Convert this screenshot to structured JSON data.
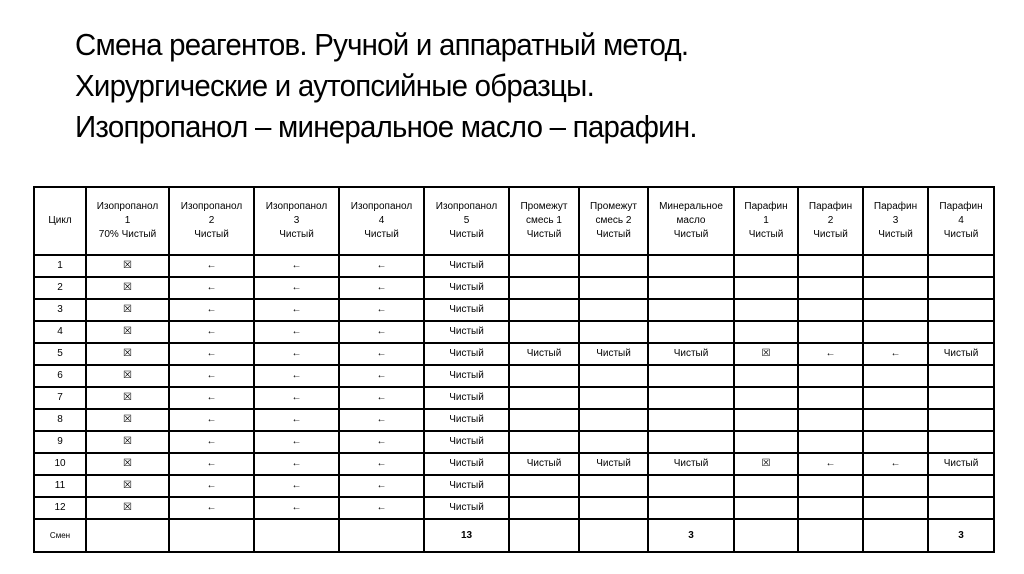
{
  "title": {
    "lines": [
      "Смена реагентов. Ручной и аппаратный метод.",
      "Хирургические и аутопсийные образцы.",
      "Изопропанол – минеральное масло – парафин."
    ]
  },
  "icons": {
    "box": "☒",
    "arrow": "←"
  },
  "table": {
    "headers": [
      [
        "Цикл"
      ],
      [
        "Изопропанол",
        "1",
        "70% Чистый"
      ],
      [
        "Изопропанол",
        "2",
        "Чистый"
      ],
      [
        "Изопропанол",
        "3",
        "Чистый"
      ],
      [
        "Изопропанол",
        "4",
        "Чистый"
      ],
      [
        "Изопропанол",
        "5",
        "Чистый"
      ],
      [
        "Промежут",
        "смесь 1",
        "Чистый"
      ],
      [
        "Промежут",
        "смесь 2",
        "Чистый"
      ],
      [
        "Минеральное",
        "масло",
        "Чистый"
      ],
      [
        "Парафин",
        "1",
        "Чистый"
      ],
      [
        "Парафин",
        "2",
        "Чистый"
      ],
      [
        "Парафин",
        "3",
        "Чистый"
      ],
      [
        "Парафин",
        "4",
        "Чистый"
      ]
    ],
    "rows": [
      [
        "1",
        "☒",
        "←",
        "←",
        "←",
        "Чистый",
        "",
        "",
        "",
        "",
        "",
        "",
        ""
      ],
      [
        "2",
        "☒",
        "←",
        "←",
        "←",
        "Чистый",
        "",
        "",
        "",
        "",
        "",
        "",
        ""
      ],
      [
        "3",
        "☒",
        "←",
        "←",
        "←",
        "Чистый",
        "",
        "",
        "",
        "",
        "",
        "",
        ""
      ],
      [
        "4",
        "☒",
        "←",
        "←",
        "←",
        "Чистый",
        "",
        "",
        "",
        "",
        "",
        "",
        ""
      ],
      [
        "5",
        "☒",
        "←",
        "←",
        "←",
        "Чистый",
        "Чистый",
        "Чистый",
        "Чистый",
        "☒",
        "←",
        "←",
        "Чистый"
      ],
      [
        "6",
        "☒",
        "←",
        "←",
        "←",
        "Чистый",
        "",
        "",
        "",
        "",
        "",
        "",
        ""
      ],
      [
        "7",
        "☒",
        "←",
        "←",
        "←",
        "Чистый",
        "",
        "",
        "",
        "",
        "",
        "",
        ""
      ],
      [
        "8",
        "☒",
        "←",
        "←",
        "←",
        "Чистый",
        "",
        "",
        "",
        "",
        "",
        "",
        ""
      ],
      [
        "9",
        "☒",
        "←",
        "←",
        "←",
        "Чистый",
        "",
        "",
        "",
        "",
        "",
        "",
        ""
      ],
      [
        "10",
        "☒",
        "←",
        "←",
        "←",
        "Чистый",
        "Чистый",
        "Чистый",
        "Чистый",
        "☒",
        "←",
        "←",
        "Чистый"
      ],
      [
        "11",
        "☒",
        "←",
        "←",
        "←",
        "Чистый",
        "",
        "",
        "",
        "",
        "",
        "",
        ""
      ],
      [
        "12",
        "☒",
        "←",
        "←",
        "←",
        "Чистый",
        "",
        "",
        "",
        "",
        "",
        "",
        ""
      ]
    ],
    "total": [
      "Смен",
      "",
      "",
      "",
      "",
      "13",
      "",
      "",
      "3",
      "",
      "",
      "",
      "3"
    ]
  }
}
